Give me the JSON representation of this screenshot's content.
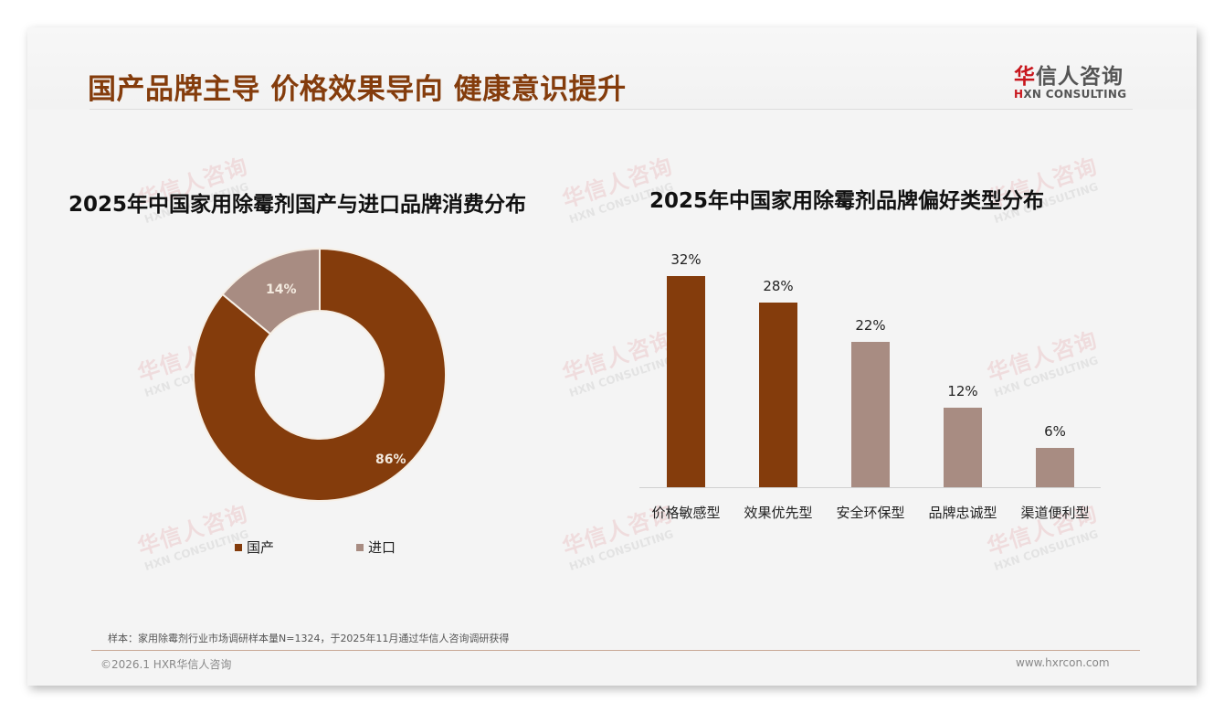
{
  "header": {
    "title": "国产品牌主导 价格效果导向 健康意识提升",
    "logo": {
      "cn_first": "华",
      "cn_rest": "信人咨询",
      "en_first": "H",
      "en_rest": "XN CONSULTING"
    }
  },
  "watermark": {
    "cn": "华信人咨询",
    "en": "HXN CONSULTING"
  },
  "left_chart": {
    "title": "2025年中国家用除霉剂国产与进口品牌消费分布",
    "slices": [
      {
        "label": "国产",
        "value_label": "86%",
        "color": "#843c0c"
      },
      {
        "label": "进口",
        "value_label": "14%",
        "color": "#a88c82"
      }
    ]
  },
  "right_chart": {
    "title": "2025年中国家用除霉剂品牌偏好类型分布",
    "bars": [
      {
        "label": "价格敏感型",
        "value_label": "32%",
        "color": "#843c0c"
      },
      {
        "label": "效果优先型",
        "value_label": "28%",
        "color": "#843c0c"
      },
      {
        "label": "安全环保型",
        "value_label": "22%",
        "color": "#a88c82"
      },
      {
        "label": "品牌忠诚型",
        "value_label": "12%",
        "color": "#a88c82"
      },
      {
        "label": "渠道便利型",
        "value_label": "6%",
        "color": "#a88c82"
      }
    ]
  },
  "footer": {
    "note": "样本：家用除霉剂行业市场调研样本量N=1324，于2025年11月通过华信人咨询调研获得",
    "copyright": "©2026.1 HXR华信人咨询",
    "website": "www.hxrcon.com"
  },
  "colors": {
    "primary": "#843c0c",
    "secondary": "#a88c82",
    "title": "#843c0c",
    "logo_red": "#c8161d"
  },
  "chart_data": [
    {
      "type": "pie",
      "title": "2025年中国家用除霉剂国产与进口品牌消费分布",
      "categories": [
        "国产",
        "进口"
      ],
      "values": [
        86,
        14
      ],
      "unit": "%",
      "donut": true,
      "legend_position": "bottom"
    },
    {
      "type": "bar",
      "title": "2025年中国家用除霉剂品牌偏好类型分布",
      "categories": [
        "价格敏感型",
        "效果优先型",
        "安全环保型",
        "品牌忠诚型",
        "渠道便利型"
      ],
      "values": [
        32,
        28,
        22,
        12,
        6
      ],
      "unit": "%",
      "xlabel": "",
      "ylabel": "",
      "ylim": [
        0,
        32
      ],
      "grid": false,
      "data_labels": true
    }
  ]
}
